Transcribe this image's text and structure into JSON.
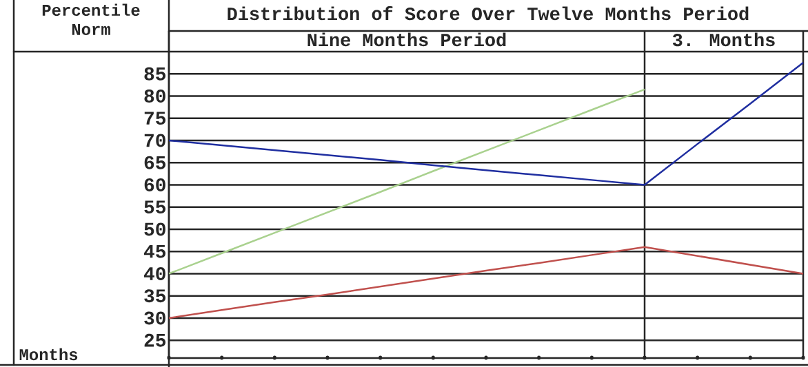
{
  "chart_data": {
    "type": "line",
    "title": "Distribution of Score Over Twelve Months Period",
    "ylabel": "Percentile Norm",
    "xlabel": "Months",
    "categories": [
      null,
      null,
      null,
      null,
      null,
      null,
      null,
      null,
      null,
      null,
      null,
      null,
      null
    ],
    "ylim": [
      21,
      90
    ],
    "yticks": [
      25,
      30,
      35,
      40,
      45,
      50,
      55,
      60,
      65,
      70,
      75,
      80,
      85
    ],
    "grid": "y",
    "annotations": [
      "Nine Months Period",
      "3. Months"
    ],
    "series": [
      {
        "color": "#a9d18e",
        "values": [
          40,
          44.6,
          49.2,
          53.8,
          58.4,
          63.1,
          67.7,
          72.3,
          76.9,
          81.5,
          null,
          null,
          null
        ]
      },
      {
        "color": "#1f2ea0",
        "values": [
          70,
          68.9,
          67.8,
          66.7,
          65.6,
          64.4,
          63.3,
          62.2,
          61.1,
          60,
          69.2,
          78.3,
          87.5
        ]
      },
      {
        "color": "#c0504d",
        "values": [
          30,
          31.8,
          33.6,
          35.3,
          37.1,
          38.9,
          40.7,
          42.4,
          44.2,
          46,
          44,
          42,
          40
        ]
      }
    ]
  }
}
